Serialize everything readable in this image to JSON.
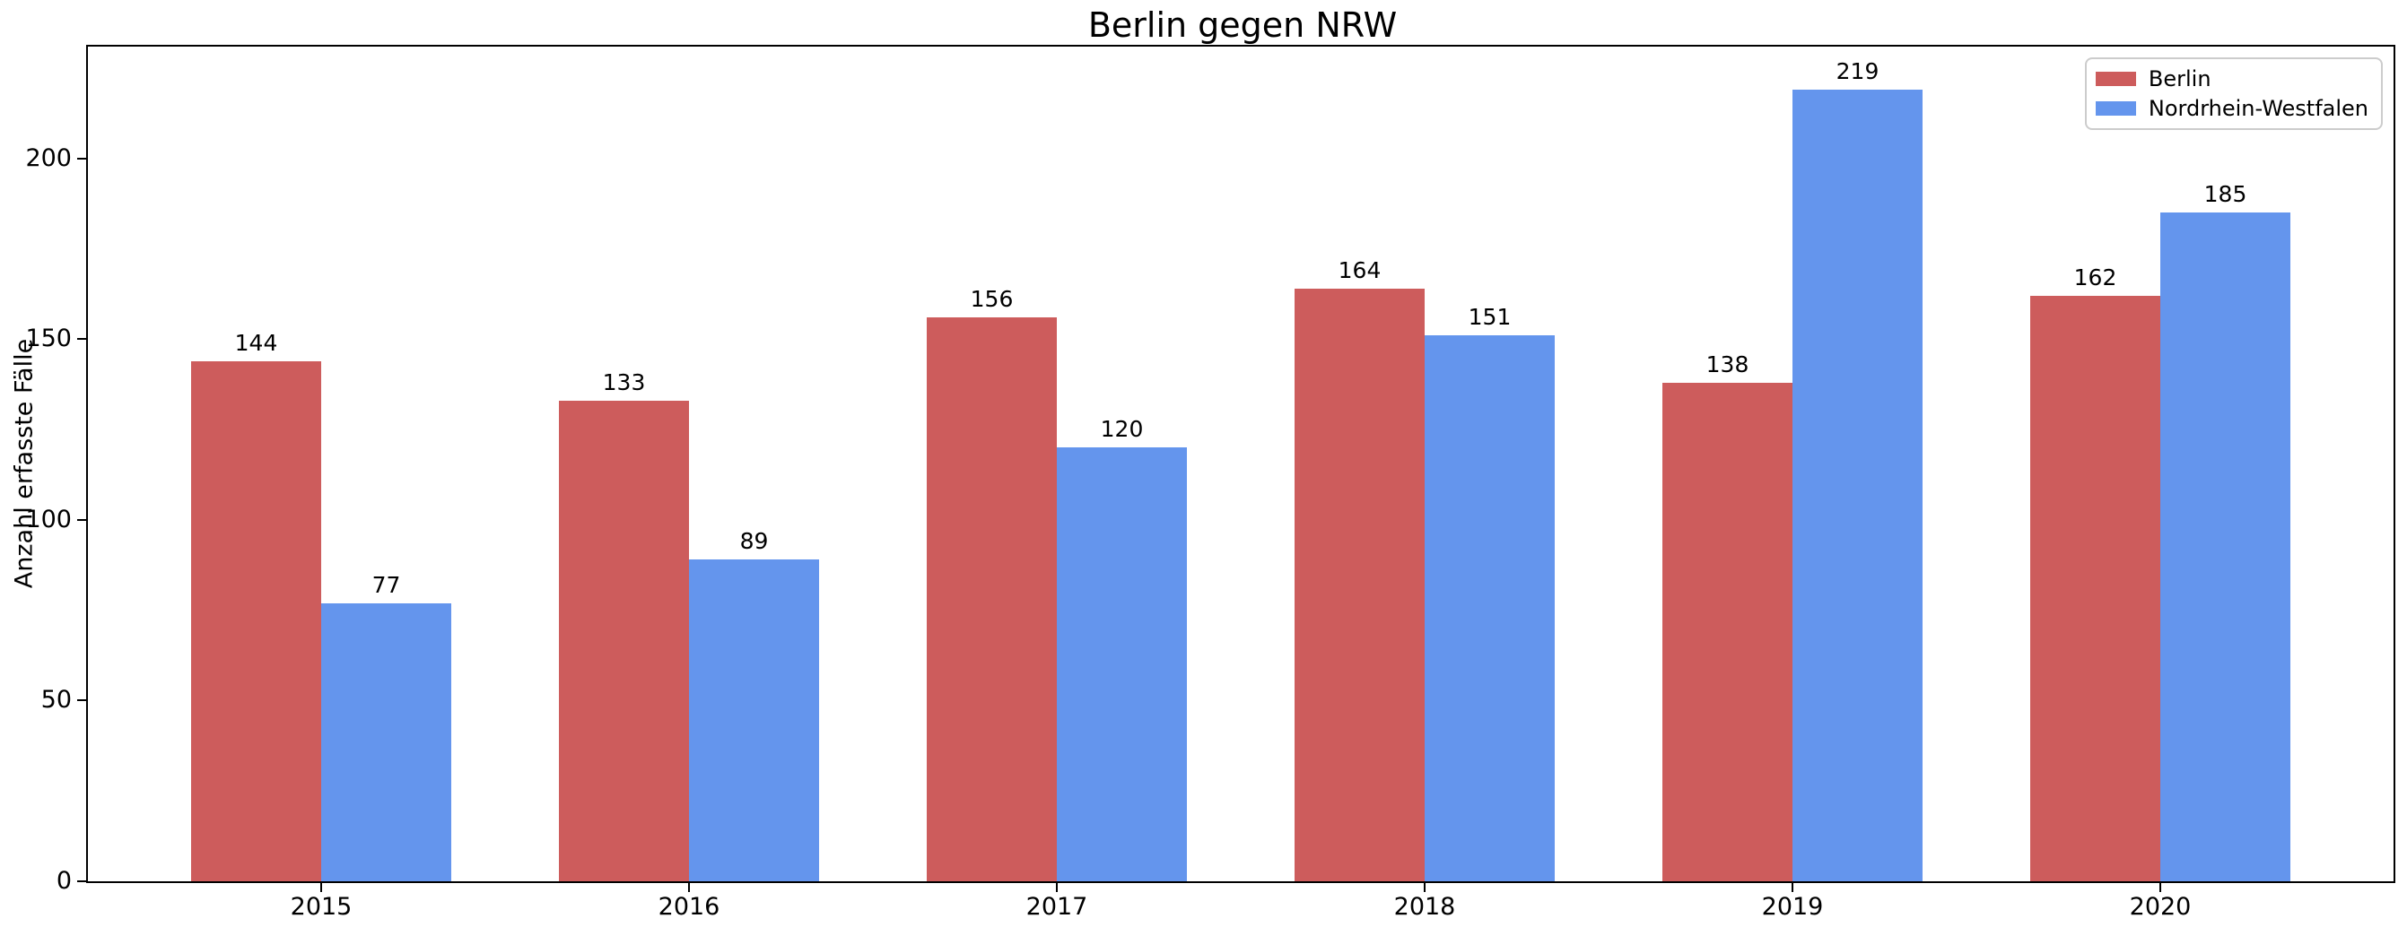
{
  "chart_data": {
    "type": "bar",
    "title": "Berlin gegen NRW",
    "xlabel": "",
    "ylabel": "Anzahl erfasste Fälle",
    "categories": [
      "2015",
      "2016",
      "2017",
      "2018",
      "2019",
      "2020"
    ],
    "series": [
      {
        "name": "Berlin",
        "color": "#CD5C5C",
        "values": [
          144,
          133,
          156,
          164,
          138,
          162
        ]
      },
      {
        "name": "Nordrhein-Westfalen",
        "color": "#6495ED",
        "values": [
          77,
          89,
          120,
          151,
          219,
          185
        ]
      }
    ],
    "yticks": [
      0,
      50,
      100,
      150,
      200
    ],
    "ylim": [
      0,
      231
    ],
    "bar_value_labels_shown": true,
    "grid": false,
    "legend": {
      "position": "upper right",
      "entries": [
        "Berlin",
        "Nordrhein-Westfalen"
      ]
    },
    "colors": {
      "axis": "#000000",
      "text": "#000000",
      "background": "#ffffff",
      "legend_border": "#cccccc"
    }
  }
}
